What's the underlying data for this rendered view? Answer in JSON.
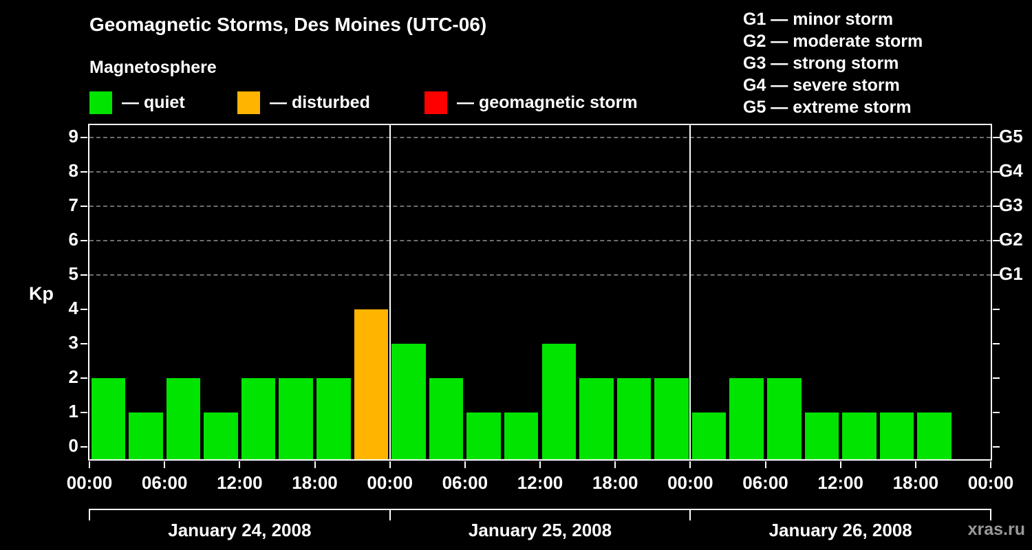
{
  "title": "Geomagnetic Storms, Des Moines (UTC-06)",
  "subtitle": "Magnetosphere",
  "watermark": "xras.ru",
  "legend": {
    "quiet": {
      "label": "— quiet",
      "color": "#00e400"
    },
    "disturbed": {
      "label": "— disturbed",
      "color": "#ffb400"
    },
    "storm": {
      "label": "— geomagnetic storm",
      "color": "#ff0000"
    }
  },
  "g_scale": [
    {
      "code": "G1",
      "label": "G1 — minor storm"
    },
    {
      "code": "G2",
      "label": "G2 — moderate storm"
    },
    {
      "code": "G3",
      "label": "G3 — strong storm"
    },
    {
      "code": "G4",
      "label": "G4 — severe storm"
    },
    {
      "code": "G5",
      "label": "G5 — extreme storm"
    }
  ],
  "chart_data": {
    "type": "bar",
    "title": "Geomagnetic Storms, Des Moines (UTC-06)",
    "xlabel": "",
    "ylabel": "Kp",
    "ylim": [
      0,
      9
    ],
    "yticks": [
      0,
      1,
      2,
      3,
      4,
      5,
      6,
      7,
      8,
      9
    ],
    "gridlines": [
      5,
      6,
      7,
      8,
      9
    ],
    "grid": true,
    "legend_position": "top-left",
    "right_axis_labels": [
      {
        "label": "G5",
        "value": 9
      },
      {
        "label": "G4",
        "value": 8
      },
      {
        "label": "G3",
        "value": 7
      },
      {
        "label": "G2",
        "value": 6
      },
      {
        "label": "G1",
        "value": 5
      }
    ],
    "x_tick_labels": [
      "00:00",
      "06:00",
      "12:00",
      "18:00",
      "00:00",
      "06:00",
      "12:00",
      "18:00",
      "00:00",
      "06:00",
      "12:00",
      "18:00",
      "00:00"
    ],
    "interval_hours": 3,
    "days": [
      {
        "date": "January 24, 2008",
        "values": [
          2,
          1,
          2,
          1,
          2,
          2,
          2,
          4
        ],
        "colors": [
          "quiet",
          "quiet",
          "quiet",
          "quiet",
          "quiet",
          "quiet",
          "quiet",
          "disturbed"
        ]
      },
      {
        "date": "January 25, 2008",
        "values": [
          3,
          2,
          1,
          1,
          3,
          2,
          2,
          2
        ],
        "colors": [
          "quiet",
          "quiet",
          "quiet",
          "quiet",
          "quiet",
          "quiet",
          "quiet",
          "quiet"
        ]
      },
      {
        "date": "January 26, 2008",
        "values": [
          1,
          2,
          2,
          1,
          1,
          1,
          1,
          null
        ],
        "colors": [
          "quiet",
          "quiet",
          "quiet",
          "quiet",
          "quiet",
          "quiet",
          "quiet",
          null
        ]
      }
    ]
  }
}
